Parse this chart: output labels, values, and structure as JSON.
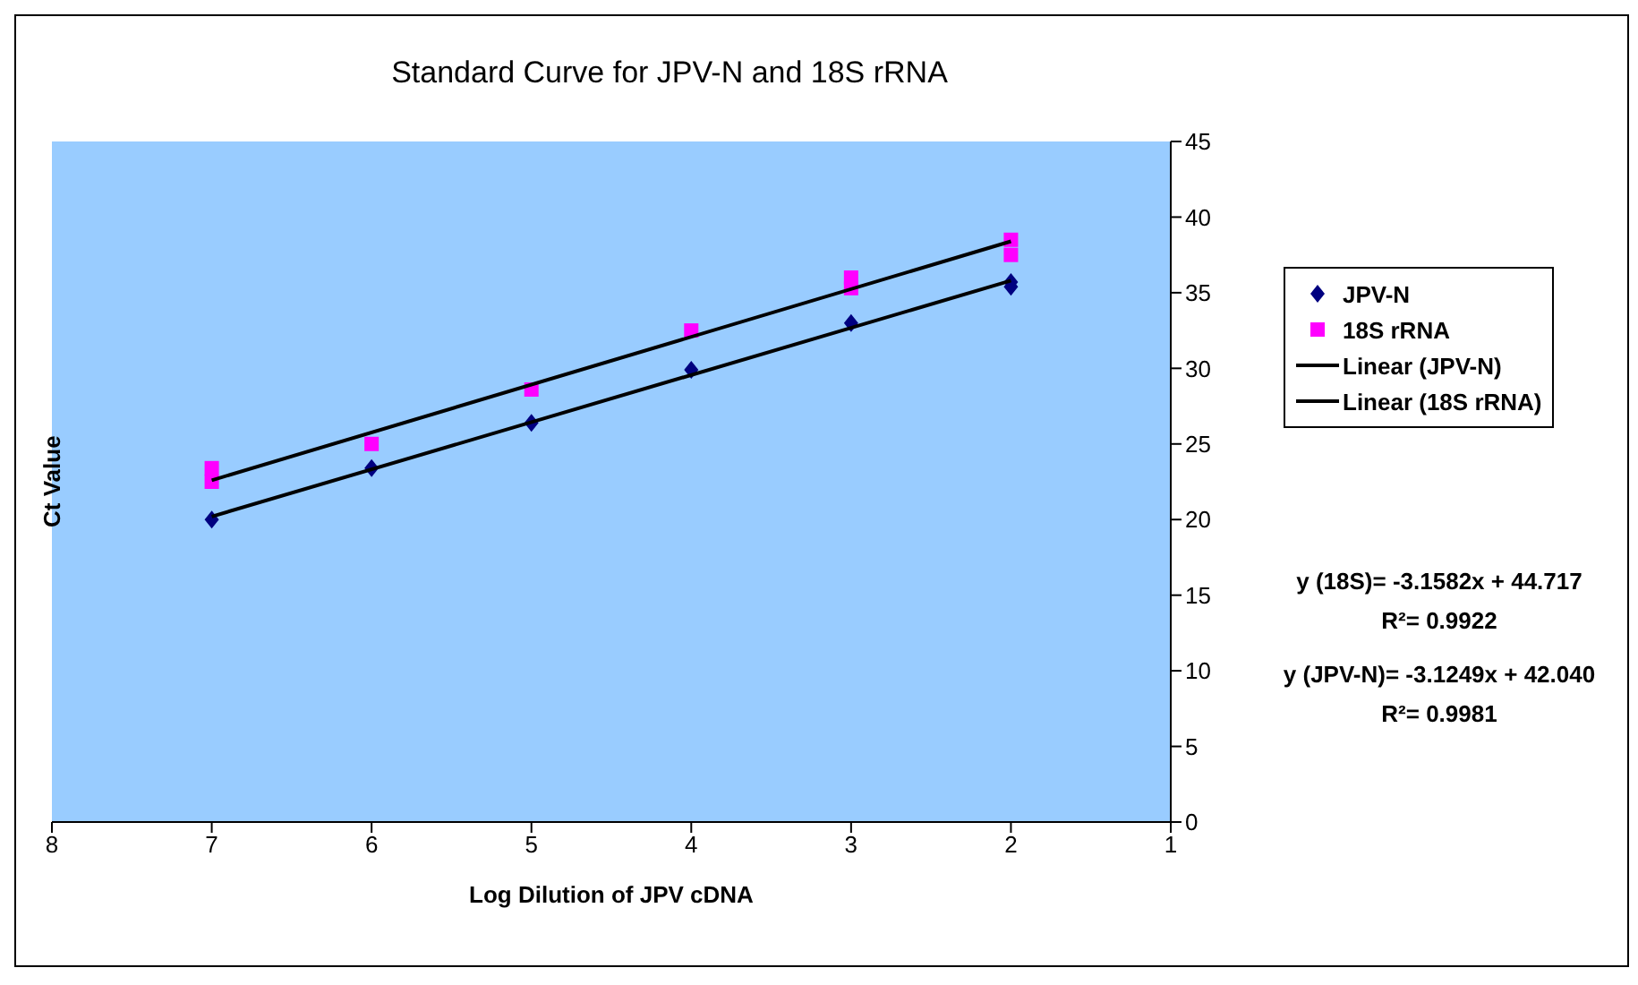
{
  "chart_data": {
    "type": "scatter",
    "title": "Standard Curve for JPV-N and 18S rRNA",
    "xlabel": "Log Dilution of JPV cDNA",
    "ylabel": "Ct Value",
    "xlim": [
      8,
      1
    ],
    "xticks": [
      8,
      7,
      6,
      5,
      4,
      3,
      2,
      1
    ],
    "ylim": [
      0,
      45
    ],
    "yticks": [
      0,
      5,
      10,
      15,
      20,
      25,
      30,
      35,
      40,
      45
    ],
    "grid": false,
    "legend": "right",
    "series": [
      {
        "name": "JPV-N",
        "marker": "diamond",
        "color": "#000080",
        "x": [
          7,
          6,
          5,
          4,
          3,
          2,
          2
        ],
        "values": [
          20.0,
          23.4,
          26.4,
          29.9,
          33.0,
          35.7,
          35.4
        ]
      },
      {
        "name": "18S rRNA",
        "marker": "square",
        "color": "#ff00ff",
        "x": [
          7,
          7,
          6,
          5,
          4,
          3,
          3,
          2,
          2
        ],
        "values": [
          23.4,
          22.5,
          25.0,
          28.6,
          32.5,
          36.0,
          35.3,
          38.5,
          37.5
        ]
      },
      {
        "name": "Linear (JPV-N)",
        "type": "line",
        "marker": "none",
        "line_style": "solid",
        "color": "#000000",
        "x": [
          7,
          2
        ],
        "values": [
          20.2,
          35.8
        ]
      },
      {
        "name": "Linear (18S rRNA)",
        "type": "line",
        "marker": "none",
        "line_style": "solid",
        "color": "#000000",
        "x": [
          7,
          2
        ],
        "values": [
          22.6,
          38.4
        ]
      }
    ],
    "annotations": [
      "y (18S)= -3.1582x + 44.717",
      "R²= 0.9922",
      "y (JPV-N)= -3.1249x + 42.040",
      "R²= 0.9981"
    ]
  }
}
